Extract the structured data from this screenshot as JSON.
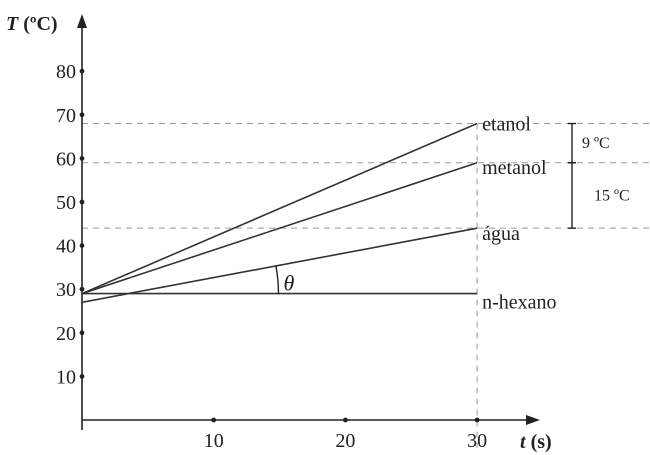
{
  "chart_data": {
    "type": "line",
    "x_axis": {
      "label_var": "t",
      "label_unit": " (s)",
      "ticks": [
        10,
        20,
        30
      ],
      "range": [
        0,
        34
      ]
    },
    "y_axis": {
      "label_var": "T",
      "label_unit": " (ºC)",
      "ticks": [
        10,
        20,
        30,
        40,
        50,
        60,
        70,
        80
      ],
      "range": [
        0,
        90
      ]
    },
    "grid": false,
    "reference_lines": {
      "horizontal_y": [
        68,
        59,
        44
      ],
      "vertical_x": [
        30
      ]
    },
    "series": [
      {
        "name": "etanol",
        "x": [
          0,
          30
        ],
        "y": [
          29,
          68
        ]
      },
      {
        "name": "metanol",
        "x": [
          0,
          30
        ],
        "y": [
          29,
          59
        ]
      },
      {
        "name": "água",
        "x": [
          0,
          30
        ],
        "y": [
          27,
          44
        ]
      },
      {
        "name": "n-hexano",
        "x": [
          0,
          30
        ],
        "y": [
          29,
          29
        ]
      }
    ],
    "annotations": {
      "angle_symbol": "θ",
      "brackets": [
        {
          "label": "9 ºC",
          "from_y": 68,
          "to_y": 59
        },
        {
          "label": "15 ºC",
          "from_y": 59,
          "to_y": 44
        }
      ]
    }
  }
}
